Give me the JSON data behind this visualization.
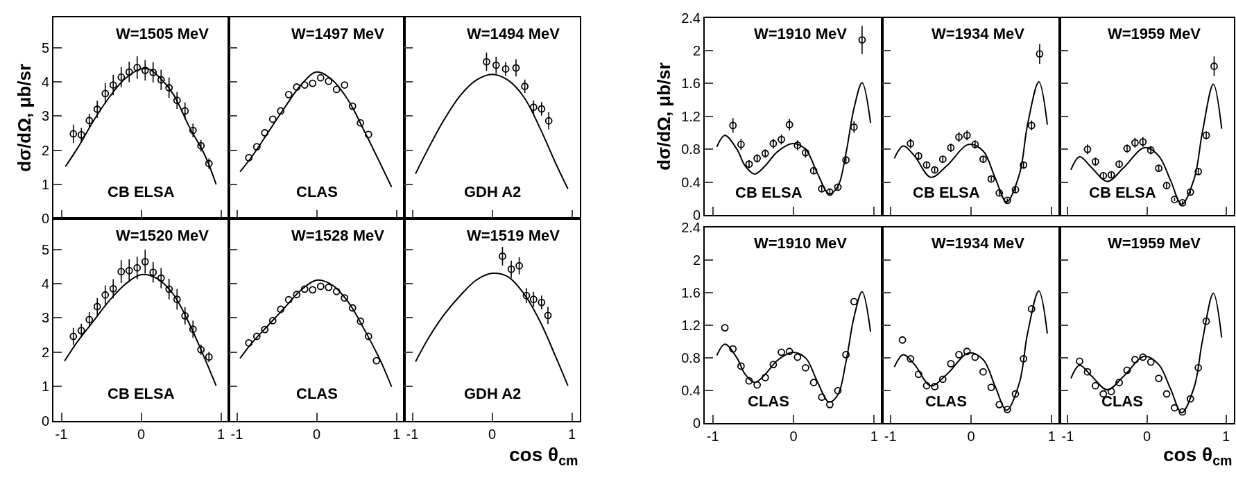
{
  "chart_data": [
    {
      "type": "scatter",
      "ylabel": "dσ/dΩ, μb/sr",
      "annotations": [
        "W=1505 MeV",
        "CB ELSA"
      ],
      "xlim": [
        -1.1,
        1.1
      ],
      "xticks": [
        -1,
        0,
        1
      ],
      "ylim": [
        0,
        5.9
      ],
      "yticks": [
        0,
        1,
        2,
        3,
        4,
        5
      ],
      "tick_labels": "y",
      "series": [
        {
          "marker": "circle",
          "color": "#000000",
          "x": [
            -0.85,
            -0.75,
            -0.65,
            -0.55,
            -0.45,
            -0.35,
            -0.25,
            -0.15,
            -0.05,
            0.05,
            0.15,
            0.25,
            0.35,
            0.45,
            0.55,
            0.65,
            0.75,
            0.85
          ],
          "values": [
            2.48,
            2.45,
            2.87,
            3.2,
            3.66,
            3.91,
            4.14,
            4.29,
            4.42,
            4.34,
            4.28,
            4.06,
            3.83,
            3.46,
            3.15,
            2.58,
            2.13,
            1.61
          ],
          "errors": [
            0.27,
            0.2,
            0.2,
            0.25,
            0.3,
            0.3,
            0.3,
            0.3,
            0.33,
            0.3,
            0.3,
            0.3,
            0.3,
            0.25,
            0.25,
            0.2,
            0.17,
            0.15
          ]
        },
        {
          "type": "line",
          "color": "#000000",
          "x": [
            -0.95,
            -0.8,
            -0.6,
            -0.4,
            -0.2,
            0,
            0.1,
            0.2,
            0.4,
            0.6,
            0.8,
            0.94
          ],
          "values": [
            1.52,
            2.05,
            2.85,
            3.55,
            4.1,
            4.38,
            4.37,
            4.2,
            3.65,
            2.7,
            1.85,
            1.0
          ]
        }
      ]
    },
    {
      "type": "scatter",
      "annotations": [
        "W=1497 MeV",
        "CLAS"
      ],
      "xlim": [
        -1.1,
        1.1
      ],
      "xticks": [
        -1,
        0,
        1
      ],
      "ylim": [
        0,
        5.9
      ],
      "yticks": [
        0,
        1,
        2,
        3,
        4,
        5
      ],
      "tick_labels": false,
      "series": [
        {
          "marker": "circle",
          "color": "#000000",
          "x": [
            -0.85,
            -0.75,
            -0.65,
            -0.55,
            -0.45,
            -0.35,
            -0.25,
            -0.15,
            -0.05,
            0.05,
            0.15,
            0.25,
            0.35,
            0.45,
            0.55,
            0.65
          ],
          "values": [
            1.78,
            2.1,
            2.51,
            2.91,
            3.15,
            3.63,
            3.85,
            3.91,
            3.96,
            4.12,
            4.02,
            3.78,
            3.91,
            3.29,
            2.8,
            2.46
          ]
        },
        {
          "type": "line",
          "color": "#000000",
          "x": [
            -0.96,
            -0.8,
            -0.6,
            -0.4,
            -0.2,
            0,
            0.2,
            0.4,
            0.6,
            0.8,
            0.94
          ],
          "values": [
            1.37,
            1.85,
            2.55,
            3.25,
            3.9,
            4.29,
            4.05,
            3.45,
            2.55,
            1.6,
            0.92
          ]
        }
      ]
    },
    {
      "type": "scatter",
      "annotations": [
        "W=1494 MeV",
        "GDH A2"
      ],
      "xlim": [
        -1.1,
        1.1
      ],
      "xticks": [
        -1,
        0,
        1
      ],
      "ylim": [
        0,
        5.9
      ],
      "yticks": [
        0,
        1,
        2,
        3,
        4,
        5
      ],
      "tick_labels": false,
      "series": [
        {
          "marker": "circle",
          "color": "#000000",
          "x": [
            -0.07,
            0.05,
            0.17,
            0.3,
            0.41,
            0.52,
            0.62,
            0.71
          ],
          "values": [
            4.59,
            4.49,
            4.38,
            4.41,
            3.87,
            3.26,
            3.21,
            2.86
          ],
          "errors": [
            0.27,
            0.25,
            0.2,
            0.25,
            0.2,
            0.2,
            0.2,
            0.25
          ]
        },
        {
          "type": "line",
          "color": "#000000",
          "x": [
            -0.96,
            -0.8,
            -0.6,
            -0.4,
            -0.2,
            0,
            0.2,
            0.4,
            0.6,
            0.8,
            0.95
          ],
          "values": [
            1.31,
            2.05,
            2.9,
            3.6,
            4.05,
            4.22,
            4.05,
            3.55,
            2.65,
            1.6,
            0.87
          ]
        }
      ]
    },
    {
      "type": "scatter",
      "annotations": [
        "W=1520 MeV",
        "CB ELSA"
      ],
      "xlim": [
        -1.1,
        1.1
      ],
      "xticks": [
        -1,
        0,
        1
      ],
      "ylim": [
        0,
        5.9
      ],
      "yticks": [
        0,
        1,
        2,
        3,
        4,
        5
      ],
      "series": [
        {
          "marker": "circle",
          "color": "#000000",
          "x": [
            -0.85,
            -0.75,
            -0.65,
            -0.55,
            -0.45,
            -0.35,
            -0.25,
            -0.15,
            -0.05,
            0.05,
            0.15,
            0.25,
            0.35,
            0.45,
            0.55,
            0.65,
            0.75,
            0.85
          ],
          "values": [
            2.46,
            2.63,
            2.95,
            3.33,
            3.67,
            3.85,
            4.35,
            4.38,
            4.46,
            4.64,
            4.33,
            4.16,
            3.84,
            3.54,
            3.06,
            2.67,
            2.07,
            1.86
          ],
          "errors": [
            0.25,
            0.2,
            0.22,
            0.25,
            0.28,
            0.28,
            0.33,
            0.33,
            0.33,
            0.35,
            0.3,
            0.3,
            0.3,
            0.3,
            0.25,
            0.25,
            0.15,
            0.15
          ]
        },
        {
          "type": "line",
          "color": "#000000",
          "x": [
            -0.96,
            -0.8,
            -0.6,
            -0.4,
            -0.2,
            0,
            0.2,
            0.4,
            0.6,
            0.8,
            0.94
          ],
          "values": [
            1.74,
            2.3,
            2.9,
            3.5,
            3.98,
            4.26,
            4.15,
            3.7,
            2.85,
            1.8,
            1.02
          ]
        }
      ]
    },
    {
      "type": "scatter",
      "annotations": [
        "W=1528 MeV",
        "CLAS"
      ],
      "xlim": [
        -1.1,
        1.1
      ],
      "xticks": [
        -1,
        0,
        1
      ],
      "ylim": [
        0,
        5.9
      ],
      "yticks": [
        0,
        1,
        2,
        3,
        4,
        5
      ],
      "tick_labels": "x",
      "series": [
        {
          "marker": "circle",
          "color": "#000000",
          "x": [
            -0.85,
            -0.75,
            -0.65,
            -0.55,
            -0.45,
            -0.35,
            -0.25,
            -0.15,
            -0.05,
            0.05,
            0.15,
            0.25,
            0.35,
            0.45,
            0.55,
            0.65,
            0.75
          ],
          "values": [
            2.27,
            2.46,
            2.66,
            2.92,
            3.25,
            3.53,
            3.68,
            3.84,
            3.82,
            3.92,
            3.89,
            3.77,
            3.58,
            3.29,
            2.9,
            2.46,
            1.75
          ]
        },
        {
          "type": "line",
          "color": "#000000",
          "x": [
            -0.96,
            -0.8,
            -0.6,
            -0.4,
            -0.2,
            0,
            0.2,
            0.4,
            0.6,
            0.8,
            0.94
          ],
          "values": [
            1.82,
            2.3,
            2.8,
            3.3,
            3.8,
            4.1,
            3.95,
            3.45,
            2.65,
            1.75,
            0.99
          ]
        }
      ]
    },
    {
      "type": "scatter",
      "xlabel": "cos θ$_{cm}$",
      "annotations": [
        "W=1519 MeV",
        "GDH A2"
      ],
      "xlim": [
        -1.1,
        1.1
      ],
      "xticks": [
        -1,
        0,
        1
      ],
      "ylim": [
        0,
        5.9
      ],
      "yticks": [
        0,
        1,
        2,
        3,
        4,
        5
      ],
      "tick_labels": "x",
      "series": [
        {
          "marker": "circle",
          "color": "#000000",
          "x": [
            0.13,
            0.24,
            0.34,
            0.43,
            0.52,
            0.62,
            0.7
          ],
          "values": [
            4.8,
            4.42,
            4.52,
            3.65,
            3.54,
            3.45,
            3.07
          ],
          "errors": [
            0.27,
            0.25,
            0.25,
            0.22,
            0.22,
            0.2,
            0.25
          ]
        },
        {
          "type": "line",
          "color": "#000000",
          "x": [
            -0.96,
            -0.8,
            -0.6,
            -0.4,
            -0.2,
            0,
            0.2,
            0.4,
            0.6,
            0.8,
            0.95
          ],
          "values": [
            1.72,
            2.4,
            3.1,
            3.65,
            4.1,
            4.3,
            4.2,
            3.7,
            2.9,
            1.85,
            1.02
          ]
        }
      ]
    },
    {
      "type": "scatter",
      "ylabel": "dσ/dΩ, μb/sr",
      "annotations": [
        "W=1910 MeV",
        "CB ELSA"
      ],
      "xlim": [
        -1.1,
        1.1
      ],
      "xticks": [
        -1,
        0,
        1
      ],
      "ylim": [
        0,
        2.4
      ],
      "yticks": [
        0,
        0.4,
        0.8,
        1.2,
        1.6,
        2,
        2.4
      ],
      "tick_labels": "y",
      "series": [
        {
          "marker": "circle",
          "color": "#000000",
          "x": [
            -0.75,
            -0.65,
            -0.55,
            -0.45,
            -0.35,
            -0.25,
            -0.15,
            -0.05,
            0.05,
            0.15,
            0.25,
            0.35,
            0.45,
            0.55,
            0.65,
            0.75,
            0.85
          ],
          "values": [
            1.09,
            0.86,
            0.62,
            0.69,
            0.75,
            0.87,
            0.92,
            1.1,
            0.85,
            0.76,
            0.54,
            0.32,
            0.28,
            0.34,
            0.67,
            1.07,
            2.13
          ],
          "errors": [
            0.09,
            0.07,
            0.05,
            0.05,
            0.05,
            0.06,
            0.06,
            0.07,
            0.06,
            0.06,
            0.04,
            0.03,
            0.03,
            0.03,
            0.05,
            0.07,
            0.17
          ]
        },
        {
          "type": "line",
          "color": "#000000",
          "x": [
            -0.95,
            -0.85,
            -0.7,
            -0.6,
            -0.48,
            -0.35,
            -0.2,
            -0.01,
            0.15,
            0.3,
            0.44,
            0.55,
            0.65,
            0.75,
            0.85,
            0.955
          ],
          "values": [
            0.83,
            0.97,
            0.8,
            0.6,
            0.5,
            0.6,
            0.77,
            0.87,
            0.8,
            0.5,
            0.26,
            0.35,
            0.75,
            1.3,
            1.61,
            1.12
          ]
        }
      ]
    },
    {
      "type": "scatter",
      "annotations": [
        "W=1934 MeV",
        "CB ELSA"
      ],
      "xlim": [
        -1.1,
        1.1
      ],
      "xticks": [
        -1,
        0,
        1
      ],
      "ylim": [
        0,
        2.4
      ],
      "yticks": [
        0,
        0.4,
        0.8,
        1.2,
        1.6,
        2,
        2.4
      ],
      "tick_labels": false,
      "series": [
        {
          "marker": "circle",
          "color": "#000000",
          "x": [
            -0.75,
            -0.65,
            -0.55,
            -0.45,
            -0.35,
            -0.25,
            -0.15,
            -0.05,
            0.05,
            0.15,
            0.25,
            0.35,
            0.45,
            0.55,
            0.65,
            0.75,
            0.85
          ],
          "values": [
            0.87,
            0.72,
            0.61,
            0.55,
            0.68,
            0.82,
            0.95,
            0.97,
            0.86,
            0.68,
            0.44,
            0.27,
            0.18,
            0.31,
            0.61,
            1.09,
            1.96
          ],
          "errors": [
            0.06,
            0.05,
            0.04,
            0.03,
            0.04,
            0.05,
            0.06,
            0.06,
            0.05,
            0.04,
            0.03,
            0.03,
            0.02,
            0.03,
            0.04,
            0.06,
            0.12
          ]
        },
        {
          "type": "line",
          "color": "#000000",
          "x": [
            -0.95,
            -0.84,
            -0.7,
            -0.5,
            -0.3,
            -0.03,
            0.15,
            0.3,
            0.44,
            0.6,
            0.7,
            0.84,
            0.945
          ],
          "values": [
            0.69,
            0.84,
            0.72,
            0.46,
            0.6,
            0.86,
            0.78,
            0.45,
            0.16,
            0.5,
            1.1,
            1.62,
            1.1
          ]
        }
      ]
    },
    {
      "type": "scatter",
      "annotations": [
        "W=1959 MeV",
        "CB ELSA"
      ],
      "xlim": [
        -1.1,
        1.1
      ],
      "xticks": [
        -1,
        0,
        1
      ],
      "ylim": [
        0,
        2.4
      ],
      "yticks": [
        0,
        0.4,
        0.8,
        1.2,
        1.6,
        2,
        2.4
      ],
      "tick_labels": false,
      "series": [
        {
          "marker": "circle",
          "color": "#000000",
          "x": [
            -0.75,
            -0.65,
            -0.55,
            -0.45,
            -0.35,
            -0.25,
            -0.15,
            -0.05,
            0.05,
            0.15,
            0.25,
            0.35,
            0.45,
            0.55,
            0.65,
            0.75,
            0.85
          ],
          "values": [
            0.8,
            0.65,
            0.48,
            0.49,
            0.62,
            0.81,
            0.88,
            0.89,
            0.79,
            0.57,
            0.36,
            0.19,
            0.15,
            0.28,
            0.53,
            0.97,
            1.81
          ],
          "errors": [
            0.06,
            0.05,
            0.03,
            0.03,
            0.04,
            0.05,
            0.06,
            0.06,
            0.05,
            0.04,
            0.03,
            0.02,
            0.02,
            0.02,
            0.03,
            0.05,
            0.12
          ]
        },
        {
          "type": "line",
          "color": "#000000",
          "x": [
            -0.96,
            -0.85,
            -0.7,
            -0.5,
            -0.3,
            -0.03,
            0.15,
            0.3,
            0.44,
            0.6,
            0.7,
            0.84,
            0.945
          ],
          "values": [
            0.55,
            0.71,
            0.58,
            0.41,
            0.57,
            0.82,
            0.72,
            0.42,
            0.13,
            0.45,
            1.0,
            1.59,
            1.05
          ]
        }
      ]
    },
    {
      "type": "scatter",
      "annotations": [
        "W=1910 MeV",
        "CLAS"
      ],
      "xlim": [
        -1.1,
        1.1
      ],
      "xticks": [
        -1,
        0,
        1
      ],
      "ylim": [
        0,
        2.4
      ],
      "yticks": [
        0,
        0.4,
        0.8,
        1.2,
        1.6,
        2,
        2.4
      ],
      "series": [
        {
          "marker": "circle",
          "color": "#000000",
          "x": [
            -0.85,
            -0.75,
            -0.65,
            -0.55,
            -0.45,
            -0.35,
            -0.25,
            -0.15,
            -0.05,
            0.05,
            0.15,
            0.25,
            0.35,
            0.45,
            0.55,
            0.65,
            0.75
          ],
          "values": [
            1.17,
            0.91,
            0.7,
            0.52,
            0.47,
            0.56,
            0.72,
            0.87,
            0.88,
            0.81,
            0.68,
            0.5,
            0.32,
            0.23,
            0.4,
            0.84,
            1.49
          ]
        },
        {
          "type": "line",
          "color": "#000000",
          "x": [
            -0.95,
            -0.85,
            -0.7,
            -0.6,
            -0.48,
            -0.35,
            -0.2,
            -0.01,
            0.15,
            0.3,
            0.44,
            0.55,
            0.65,
            0.75,
            0.85,
            0.955
          ],
          "values": [
            0.83,
            0.97,
            0.8,
            0.6,
            0.5,
            0.6,
            0.77,
            0.87,
            0.8,
            0.5,
            0.26,
            0.35,
            0.75,
            1.3,
            1.61,
            1.12
          ]
        }
      ]
    },
    {
      "type": "scatter",
      "annotations": [
        "W=1934 MeV",
        "CLAS"
      ],
      "xlim": [
        -1.1,
        1.1
      ],
      "xticks": [
        -1,
        0,
        1
      ],
      "ylim": [
        0,
        2.4
      ],
      "yticks": [
        0,
        0.4,
        0.8,
        1.2,
        1.6,
        2,
        2.4
      ],
      "tick_labels": "x",
      "series": [
        {
          "marker": "circle",
          "color": "#000000",
          "x": [
            -0.85,
            -0.75,
            -0.65,
            -0.55,
            -0.45,
            -0.35,
            -0.25,
            -0.15,
            -0.05,
            0.05,
            0.15,
            0.25,
            0.35,
            0.45,
            0.55,
            0.65,
            0.75
          ],
          "values": [
            1.02,
            0.79,
            0.6,
            0.46,
            0.45,
            0.54,
            0.73,
            0.84,
            0.88,
            0.81,
            0.63,
            0.44,
            0.23,
            0.17,
            0.36,
            0.79,
            1.4
          ]
        },
        {
          "type": "line",
          "color": "#000000",
          "x": [
            -0.95,
            -0.84,
            -0.7,
            -0.5,
            -0.3,
            -0.03,
            0.15,
            0.3,
            0.44,
            0.6,
            0.7,
            0.84,
            0.945
          ],
          "values": [
            0.69,
            0.84,
            0.72,
            0.46,
            0.6,
            0.86,
            0.78,
            0.45,
            0.16,
            0.5,
            1.1,
            1.62,
            1.1
          ]
        }
      ]
    },
    {
      "type": "scatter",
      "xlabel": "cos θ$_{cm}$",
      "annotations": [
        "W=1959 MeV",
        "CLAS"
      ],
      "xlim": [
        -1.1,
        1.1
      ],
      "xticks": [
        -1,
        0,
        1
      ],
      "ylim": [
        0,
        2.4
      ],
      "yticks": [
        0,
        0.4,
        0.8,
        1.2,
        1.6,
        2,
        2.4
      ],
      "tick_labels": "x",
      "series": [
        {
          "marker": "circle",
          "color": "#000000",
          "x": [
            -0.85,
            -0.75,
            -0.65,
            -0.55,
            -0.45,
            -0.35,
            -0.25,
            -0.15,
            -0.05,
            0.05,
            0.15,
            0.25,
            0.35,
            0.45,
            0.55,
            0.65,
            0.75
          ],
          "values": [
            0.76,
            0.63,
            0.46,
            0.36,
            0.39,
            0.5,
            0.65,
            0.78,
            0.81,
            0.75,
            0.55,
            0.36,
            0.19,
            0.14,
            0.3,
            0.68,
            1.25
          ]
        },
        {
          "type": "line",
          "color": "#000000",
          "x": [
            -0.96,
            -0.85,
            -0.7,
            -0.5,
            -0.3,
            -0.03,
            0.15,
            0.3,
            0.44,
            0.6,
            0.7,
            0.84,
            0.945
          ],
          "values": [
            0.55,
            0.71,
            0.58,
            0.41,
            0.57,
            0.82,
            0.72,
            0.42,
            0.13,
            0.45,
            1.0,
            1.59,
            1.05
          ]
        }
      ]
    }
  ]
}
